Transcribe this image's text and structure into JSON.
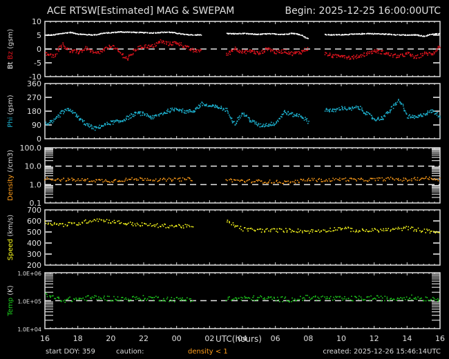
{
  "header": {
    "title": "ACE RTSW[Estimated] MAG & SWEPAM",
    "begin": "Begin: 2025-12-25 16:00:00UTC"
  },
  "footer": {
    "start_doy": "start DOY: 359",
    "caution": "caution:",
    "density_note": "density < 1",
    "created": "created: 2025-12-26 15:46:14UTC"
  },
  "colors": {
    "background": "#000000",
    "axis": "#e0e0e0",
    "bt": "#ffffff",
    "bz": "#e0141e",
    "phi": "#1eb4d2",
    "density": "#ff9d1a",
    "speed": "#ffff1e",
    "temp": "#1ed21e"
  },
  "chart_data": [
    {
      "type": "scatter",
      "title": "Bt / Bz (gsm)",
      "ylabel_parts": [
        "Bt",
        "Bz",
        "(gsm)"
      ],
      "ylim": [
        -10,
        10
      ],
      "yticks": [
        "10",
        "5",
        "0",
        "-5",
        "-10"
      ],
      "reference_lines": [
        0
      ],
      "xlabel": "UTC(hours)",
      "xticks": [
        "16",
        "18",
        "20",
        "22",
        "00",
        "02",
        "04",
        "06",
        "08",
        "10",
        "12",
        "14",
        "16"
      ],
      "series": [
        {
          "name": "Bt",
          "color": "#ffffff",
          "x": [
            0,
            0.5,
            1,
            1.5,
            2,
            2.5,
            3,
            3.5,
            4,
            4.5,
            5,
            5.5,
            6,
            6.5,
            7,
            7.5,
            8,
            8.5,
            9,
            9.5,
            10,
            10.5,
            11,
            11.5,
            12,
            12.5,
            13,
            13.5,
            14,
            14.5,
            15,
            15.5,
            16,
            16.5,
            17,
            17.5,
            18,
            18.5,
            19,
            19.5,
            20,
            20.5,
            21,
            21.5,
            22,
            22.5,
            23,
            23.5,
            24
          ],
          "y": [
            5.2,
            5.3,
            5.8,
            6.2,
            5.6,
            5.4,
            5.3,
            5.9,
            6.1,
            6.4,
            6.3,
            6.2,
            6.1,
            6.0,
            6.2,
            6.3,
            5.9,
            5.4,
            5.3,
            5.3,
            null,
            null,
            5.8,
            5.7,
            5.8,
            5.6,
            5.5,
            5.7,
            5.6,
            5.5,
            5.9,
            5.4,
            3.8,
            null,
            5.4,
            5.3,
            5.4,
            5.5,
            5.6,
            5.8,
            5.7,
            5.6,
            5.5,
            5.3,
            5.2,
            5.3,
            4.8,
            5.6,
            5.7
          ]
        },
        {
          "name": "Bz",
          "color": "#e0141e",
          "x": [
            0,
            0.5,
            1,
            1.5,
            2,
            2.5,
            3,
            3.5,
            4,
            4.5,
            5,
            5.5,
            6,
            6.5,
            7,
            7.5,
            8,
            8.5,
            9,
            9.5,
            10,
            10.5,
            11,
            11.5,
            12,
            12.5,
            13,
            13.5,
            14,
            14.5,
            15,
            15.5,
            16,
            16.5,
            17,
            17.5,
            18,
            18.5,
            19,
            19.5,
            20,
            20.5,
            21,
            21.5,
            22,
            22.5,
            23,
            23.5,
            24
          ],
          "y": [
            -1.5,
            -2.5,
            2.0,
            -0.5,
            -1.0,
            0.5,
            -1.5,
            -0.5,
            1.5,
            -1.0,
            -3.5,
            0.2,
            1.2,
            1.0,
            3.0,
            2.0,
            2.5,
            1.0,
            -0.5,
            -0.2,
            null,
            null,
            -2.0,
            0.5,
            -1.0,
            -0.5,
            -1.5,
            0.5,
            -1.0,
            -0.5,
            -1.5,
            -1.0,
            0.5,
            null,
            -1.5,
            -2.5,
            -2.0,
            -3.0,
            -2.5,
            -1.5,
            -0.5,
            -1.0,
            -2.0,
            -2.5,
            -1.5,
            -3.0,
            -1.5,
            -1.5,
            1.5
          ]
        }
      ]
    },
    {
      "type": "scatter",
      "title": "Phi (gsm)",
      "ylabel": "Phi (gsm)",
      "ylim": [
        0,
        360
      ],
      "yticks": [
        "360",
        "270",
        "180",
        "90",
        "0"
      ],
      "series": [
        {
          "name": "Phi",
          "color": "#1eb4d2",
          "x": [
            0,
            0.5,
            1,
            1.5,
            2,
            2.5,
            3,
            3.5,
            4,
            4.5,
            5,
            5.5,
            6,
            6.5,
            7,
            7.5,
            8,
            8.5,
            9,
            9.5,
            10,
            10.5,
            11,
            11.5,
            12,
            12.5,
            13,
            13.5,
            14,
            14.5,
            15,
            15.5,
            16,
            16.5,
            17,
            17.5,
            18,
            18.5,
            19,
            19.5,
            20,
            20.5,
            21,
            21.5,
            22,
            22.5,
            23,
            23.5,
            24
          ],
          "y": [
            100,
            115,
            175,
            195,
            140,
            95,
            70,
            90,
            110,
            115,
            140,
            170,
            165,
            140,
            165,
            185,
            200,
            180,
            185,
            230,
            215,
            210,
            190,
            100,
            170,
            120,
            90,
            95,
            105,
            180,
            160,
            155,
            110,
            null,
            195,
            185,
            205,
            195,
            210,
            170,
            130,
            140,
            195,
            255,
            150,
            140,
            165,
            185,
            150
          ]
        }
      ]
    },
    {
      "type": "scatter",
      "title": "Density (/cm3)",
      "ylabel": "Density (/cm3)",
      "yscale": "log",
      "ylim": [
        0.1,
        100
      ],
      "yticks": [
        "100.0",
        "10.0",
        "1.0",
        "0.1"
      ],
      "reference_lines": [
        1.0,
        10.0
      ],
      "series": [
        {
          "name": "Density",
          "color": "#ff9d1a",
          "x": [
            0,
            1,
            2,
            3,
            4,
            5,
            6,
            7,
            8,
            9,
            10,
            11,
            12,
            13,
            14,
            15,
            16,
            17,
            18,
            19,
            20,
            21,
            22,
            23,
            24
          ],
          "y": [
            2.2,
            2.0,
            1.9,
            1.8,
            1.7,
            2.0,
            2.2,
            1.9,
            2.0,
            2.1,
            null,
            1.9,
            1.7,
            1.6,
            1.5,
            1.4,
            2.0,
            1.8,
            2.1,
            1.9,
            2.0,
            2.2,
            1.9,
            2.4,
            2.1
          ]
        }
      ]
    },
    {
      "type": "scatter",
      "title": "Speed (km/s)",
      "ylabel": "Speed (km/s)",
      "ylim": [
        200,
        700
      ],
      "yticks": [
        "700",
        "600",
        "500",
        "400",
        "300",
        "200"
      ],
      "series": [
        {
          "name": "Speed",
          "color": "#ffff1e",
          "x": [
            0,
            1,
            2,
            3,
            4,
            5,
            6,
            7,
            8,
            9,
            10,
            11,
            12,
            13,
            14,
            15,
            16,
            17,
            18,
            19,
            20,
            21,
            22,
            23,
            24
          ],
          "y": [
            590,
            570,
            580,
            620,
            600,
            580,
            570,
            560,
            560,
            550,
            null,
            600,
            530,
            520,
            520,
            520,
            510,
            520,
            540,
            515,
            520,
            525,
            540,
            515,
            505
          ]
        }
      ]
    },
    {
      "type": "scatter",
      "title": "Temp (K)",
      "ylabel": "Temp (K)",
      "yscale": "log",
      "ylim": [
        10000,
        1000000
      ],
      "yticks": [
        "1.0E+06",
        "1.0E+05",
        "1.0E+04"
      ],
      "reference_lines": [
        100000
      ],
      "series": [
        {
          "name": "Temp",
          "color": "#1ed21e",
          "x": [
            0,
            1,
            2,
            3,
            4,
            5,
            6,
            7,
            8,
            9,
            10,
            11,
            12,
            13,
            14,
            15,
            16,
            17,
            18,
            19,
            20,
            21,
            22,
            23,
            24
          ],
          "y": [
            160000,
            110000,
            120000,
            135000,
            125000,
            120000,
            130000,
            125000,
            115000,
            120000,
            null,
            120000,
            125000,
            130000,
            120000,
            115000,
            135000,
            130000,
            120000,
            125000,
            130000,
            120000,
            140000,
            125000,
            120000
          ]
        }
      ]
    }
  ]
}
